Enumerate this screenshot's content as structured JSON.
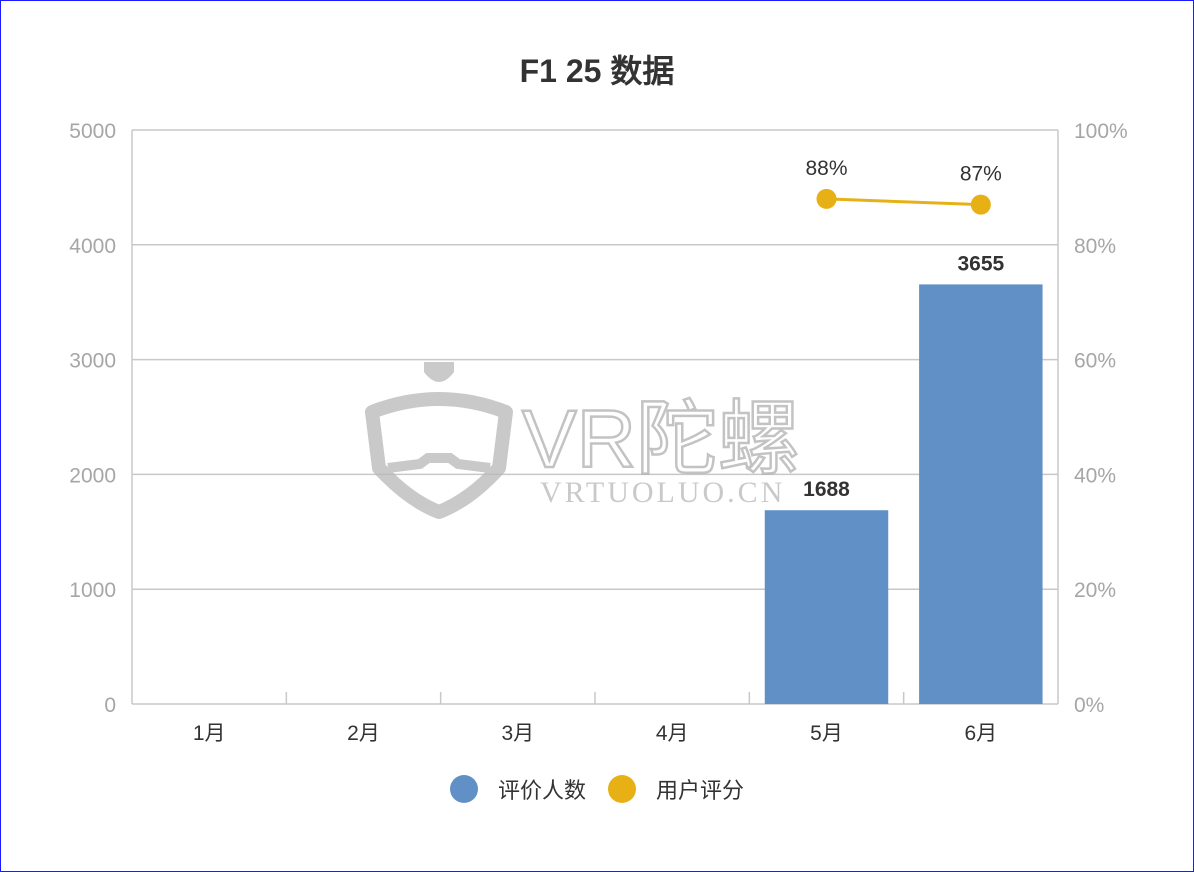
{
  "chart_data": {
    "type": "bar",
    "title": "F1 25 数据",
    "categories": [
      "1月",
      "2月",
      "3月",
      "4月",
      "5月",
      "6月"
    ],
    "series": [
      {
        "name": "评价人数",
        "type": "bar",
        "axis": "left",
        "color": "#6190c7",
        "values": [
          null,
          null,
          null,
          null,
          1688,
          3655
        ],
        "labels": [
          "",
          "",
          "",
          "",
          "1688",
          "3655"
        ]
      },
      {
        "name": "用户评分",
        "type": "line",
        "axis": "right",
        "color": "#e7b116",
        "values": [
          null,
          null,
          null,
          null,
          88,
          87
        ],
        "labels": [
          "",
          "",
          "",
          "",
          "88%",
          "87%"
        ]
      }
    ],
    "y_left": {
      "min": 0,
      "max": 5000,
      "ticks": [
        "0",
        "1000",
        "2000",
        "3000",
        "4000",
        "5000"
      ]
    },
    "y_right": {
      "min": 0,
      "max": 100,
      "ticks": [
        "0%",
        "20%",
        "40%",
        "60%",
        "80%",
        "100%"
      ]
    },
    "grid": true,
    "legend_position": "bottom-center"
  },
  "watermark": {
    "text": "VR陀螺",
    "subtext": "VRTUOLUO.CN"
  }
}
